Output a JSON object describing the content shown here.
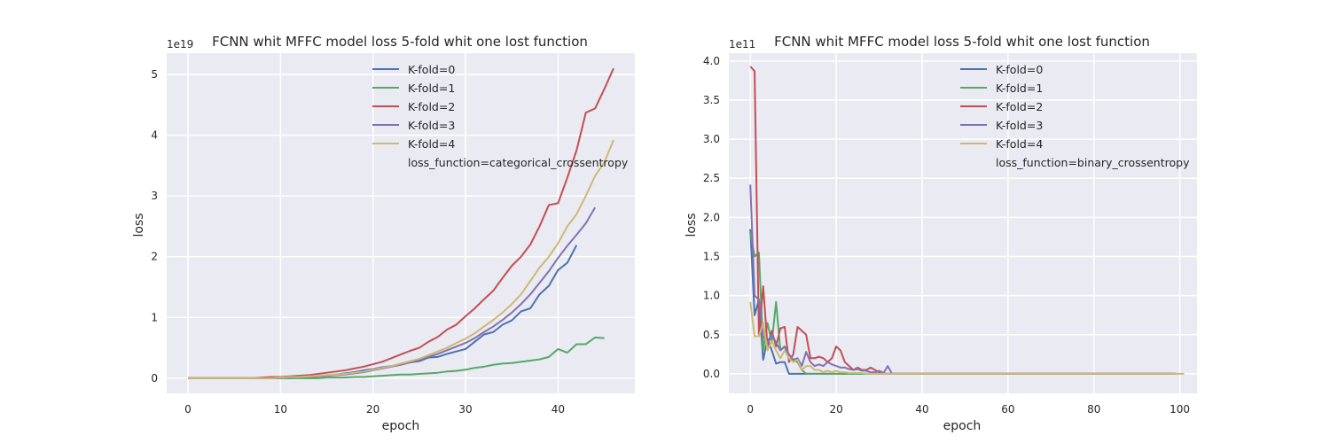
{
  "chart_data": [
    {
      "type": "line",
      "title": "FCNN whit MFFC model loss 5-fold whit one lost function",
      "xlabel": "epoch",
      "ylabel": "loss",
      "y_scale_label": "1e19",
      "xlim": [
        -2.3,
        48.3
      ],
      "ylim": [
        -0.25,
        5.35
      ],
      "xticks": [
        0,
        10,
        20,
        30,
        40
      ],
      "yticks": [
        0,
        1,
        2,
        3,
        4,
        5
      ],
      "grid": true,
      "legend_position": "top-right",
      "legend_note": "loss_function=categorical_crossentropy",
      "series": [
        {
          "name": "K-fold=0",
          "color": "#4c72b0",
          "values": [
            0,
            0,
            0,
            0,
            0,
            0,
            0,
            0,
            0,
            0,
            0,
            0,
            0.01,
            0.02,
            0.03,
            0.04,
            0.06,
            0.08,
            0.1,
            0.13,
            0.15,
            0.18,
            0.2,
            0.23,
            0.26,
            0.28,
            0.34,
            0.35,
            0.4,
            0.44,
            0.48,
            0.6,
            0.72,
            0.76,
            0.88,
            0.95,
            1.1,
            1.15,
            1.38,
            1.52,
            1.78,
            1.9,
            2.19
          ]
        },
        {
          "name": "K-fold=1",
          "color": "#55a868",
          "values": [
            0,
            0,
            0,
            0,
            0,
            0,
            0,
            0,
            0,
            0,
            0,
            0,
            0,
            0,
            0,
            0.01,
            0.01,
            0.01,
            0.02,
            0.02,
            0.03,
            0.04,
            0.05,
            0.06,
            0.06,
            0.07,
            0.08,
            0.09,
            0.11,
            0.12,
            0.14,
            0.17,
            0.19,
            0.22,
            0.24,
            0.25,
            0.27,
            0.29,
            0.31,
            0.35,
            0.48,
            0.42,
            0.56,
            0.56,
            0.67,
            0.66
          ]
        },
        {
          "name": "K-fold=2",
          "color": "#c44e52",
          "values": [
            0,
            0,
            0,
            0,
            0,
            0,
            0,
            0,
            0.01,
            0.02,
            0.02,
            0.03,
            0.04,
            0.05,
            0.07,
            0.09,
            0.11,
            0.13,
            0.16,
            0.19,
            0.23,
            0.27,
            0.33,
            0.39,
            0.45,
            0.5,
            0.6,
            0.68,
            0.8,
            0.88,
            1.02,
            1.15,
            1.3,
            1.44,
            1.65,
            1.85,
            2,
            2.2,
            2.5,
            2.85,
            2.88,
            3.3,
            3.75,
            4.37,
            4.44,
            4.76,
            5.1
          ]
        },
        {
          "name": "K-fold=3",
          "color": "#8172b2",
          "values": [
            0,
            0,
            0,
            0,
            0,
            0,
            0,
            0,
            0,
            0,
            0.01,
            0.01,
            0.02,
            0.02,
            0.03,
            0.04,
            0.05,
            0.06,
            0.08,
            0.1,
            0.13,
            0.16,
            0.19,
            0.22,
            0.26,
            0.3,
            0.35,
            0.4,
            0.46,
            0.52,
            0.58,
            0.66,
            0.76,
            0.85,
            0.96,
            1.08,
            1.22,
            1.38,
            1.57,
            1.76,
            1.98,
            2.18,
            2.36,
            2.55,
            2.81
          ]
        },
        {
          "name": "K-fold=4",
          "color": "#ccb974",
          "values": [
            0,
            0,
            0,
            0,
            0,
            0,
            0,
            0,
            0,
            0,
            0.01,
            0.02,
            0.02,
            0.03,
            0.04,
            0.05,
            0.06,
            0.07,
            0.09,
            0.11,
            0.14,
            0.17,
            0.2,
            0.24,
            0.28,
            0.32,
            0.38,
            0.44,
            0.5,
            0.58,
            0.65,
            0.74,
            0.85,
            0.96,
            1.08,
            1.22,
            1.38,
            1.6,
            1.82,
            2,
            2.22,
            2.5,
            2.7,
            3,
            3.33,
            3.55,
            3.92
          ]
        }
      ]
    },
    {
      "type": "line",
      "title": "FCNN whit MFFC model loss 5-fold whit one lost function",
      "xlabel": "epoch",
      "ylabel": "loss",
      "y_scale_label": "1e11",
      "xlim": [
        -5,
        104
      ],
      "ylim": [
        -0.25,
        4.1
      ],
      "xticks": [
        0,
        20,
        40,
        60,
        80,
        100
      ],
      "yticks": [
        0.0,
        0.5,
        1.0,
        1.5,
        2.0,
        2.5,
        3.0,
        3.5,
        4.0
      ],
      "tick_labels": [
        "0.0",
        "0.5",
        "1.0",
        "1.5",
        "2.0",
        "2.5",
        "3.0",
        "3.5",
        "4.0"
      ],
      "grid": true,
      "legend_position": "top-right",
      "legend_note": "loss_function=binary_crossentropy",
      "series": [
        {
          "name": "K-fold=0",
          "color": "#4c72b0",
          "values": [
            1.85,
            0.75,
            0.95,
            0.18,
            0.45,
            0.3,
            0.13,
            0.15,
            0.15,
            0,
            0,
            0,
            0,
            0,
            0,
            0,
            0,
            0,
            0,
            0,
            0,
            0,
            0,
            0,
            0,
            0,
            0,
            0,
            0,
            0,
            0,
            0,
            0,
            0,
            0,
            0,
            0,
            0,
            0,
            0,
            0,
            0,
            0,
            0,
            0,
            0,
            0,
            0,
            0,
            0,
            0,
            0,
            0,
            0,
            0,
            0,
            0,
            0,
            0,
            0,
            0,
            0,
            0,
            0,
            0,
            0,
            0,
            0,
            0,
            0,
            0,
            0,
            0,
            0,
            0,
            0,
            0,
            0,
            0,
            0,
            0,
            0,
            0,
            0,
            0,
            0,
            0,
            0,
            0,
            0,
            0,
            0,
            0,
            0,
            0,
            0,
            0,
            0,
            0,
            0
          ]
        },
        {
          "name": "K-fold=1",
          "color": "#55a868",
          "values": [
            1.8,
            1.5,
            1.55,
            0.3,
            0.65,
            0.4,
            0.92,
            0.3,
            0.35,
            0.2,
            0.18,
            0.15,
            0.05,
            0,
            0,
            0,
            0,
            0,
            0,
            0,
            0,
            0,
            0,
            0,
            0,
            0,
            0,
            0,
            0,
            0,
            0,
            0,
            0,
            0,
            0,
            0,
            0,
            0,
            0,
            0,
            0,
            0,
            0,
            0,
            0,
            0,
            0,
            0,
            0,
            0,
            0,
            0,
            0,
            0,
            0,
            0,
            0,
            0,
            0,
            0,
            0,
            0,
            0,
            0,
            0,
            0,
            0,
            0,
            0,
            0,
            0,
            0,
            0,
            0,
            0,
            0,
            0,
            0,
            0,
            0,
            0,
            0,
            0,
            0,
            0,
            0,
            0,
            0,
            0,
            0,
            0,
            0,
            0,
            0,
            0,
            0,
            0,
            0,
            0,
            0
          ]
        },
        {
          "name": "K-fold=2",
          "color": "#c44e52",
          "values": [
            3.93,
            3.87,
            0.5,
            1.12,
            0.35,
            0.55,
            0.35,
            0.58,
            0.6,
            0.15,
            0.25,
            0.6,
            0.55,
            0.5,
            0.2,
            0.2,
            0.22,
            0.2,
            0.15,
            0.2,
            0.35,
            0.3,
            0.15,
            0.1,
            0.05,
            0.08,
            0.05,
            0.05,
            0.08,
            0.05,
            0.02,
            0,
            0,
            0,
            0,
            0,
            0,
            0,
            0,
            0,
            0,
            0,
            0,
            0,
            0,
            0,
            0,
            0,
            0,
            0,
            0,
            0,
            0,
            0,
            0,
            0,
            0,
            0,
            0,
            0,
            0,
            0,
            0,
            0,
            0,
            0,
            0,
            0,
            0,
            0,
            0,
            0,
            0,
            0,
            0,
            0,
            0,
            0,
            0,
            0,
            0,
            0,
            0,
            0,
            0,
            0,
            0,
            0,
            0,
            0,
            0,
            0,
            0,
            0,
            0,
            0,
            0,
            0,
            0,
            0
          ]
        },
        {
          "name": "K-fold=3",
          "color": "#8172b2",
          "values": [
            2.42,
            1.0,
            0.95,
            0.48,
            0.4,
            0.5,
            0.4,
            0.3,
            0.35,
            0.25,
            0.18,
            0.2,
            0.1,
            0.28,
            0.15,
            0.1,
            0.12,
            0.1,
            0.15,
            0.12,
            0.1,
            0.08,
            0.08,
            0.06,
            0.05,
            0.06,
            0.04,
            0.04,
            0.02,
            0.02,
            0.04,
            0.01,
            0.1,
            0,
            0,
            0,
            0,
            0,
            0,
            0,
            0,
            0,
            0,
            0,
            0,
            0,
            0,
            0,
            0,
            0,
            0,
            0,
            0,
            0,
            0,
            0,
            0,
            0,
            0,
            0,
            0,
            0,
            0,
            0,
            0,
            0,
            0,
            0,
            0,
            0,
            0,
            0,
            0,
            0,
            0,
            0,
            0,
            0,
            0,
            0,
            0,
            0,
            0,
            0,
            0,
            0,
            0,
            0,
            0,
            0,
            0,
            0,
            0,
            0,
            0,
            0,
            0,
            0,
            0,
            0
          ]
        },
        {
          "name": "K-fold=4",
          "color": "#ccb974",
          "values": [
            0.92,
            0.48,
            0.48,
            0.65,
            0.3,
            0.42,
            0.3,
            0.2,
            0.3,
            0.2,
            0.15,
            0.18,
            0.05,
            0.1,
            0.1,
            0.05,
            0.05,
            0.02,
            0.04,
            0.02,
            0.04,
            0.02,
            0.02,
            0.01,
            0.01,
            0.01,
            0.01,
            0,
            0,
            0,
            0,
            0,
            0,
            0,
            0,
            0,
            0,
            0,
            0,
            0,
            0,
            0,
            0,
            0,
            0,
            0,
            0,
            0,
            0,
            0,
            0,
            0,
            0,
            0,
            0,
            0,
            0,
            0,
            0,
            0,
            0,
            0,
            0,
            0,
            0,
            0,
            0,
            0,
            0,
            0,
            0,
            0,
            0,
            0,
            0,
            0,
            0,
            0,
            0,
            0,
            0,
            0,
            0,
            0,
            0,
            0,
            0,
            0,
            0,
            0,
            0,
            0,
            0,
            0,
            0,
            0,
            0,
            0,
            0,
            0,
            0,
            0
          ]
        }
      ]
    }
  ]
}
